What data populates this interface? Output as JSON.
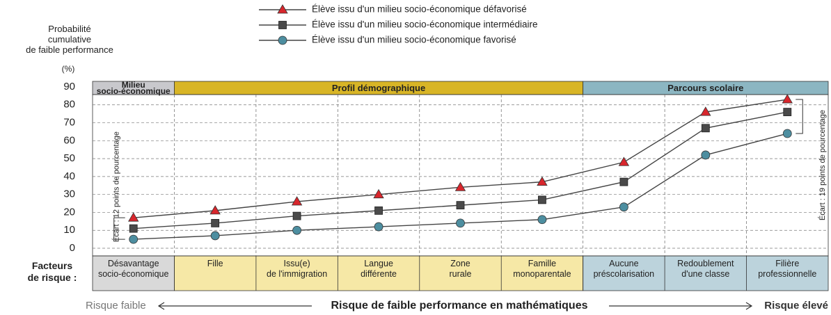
{
  "chart_data": {
    "type": "line",
    "y_label": "Probabilité\ncumulative\nde faible performance",
    "y_unit": "(%)",
    "row_label": "Facteurs\nde risque :",
    "categories": [
      "Désavantage\nsocio-économique",
      "Fille",
      "Issu(e)\nde l'immigration",
      "Langue\ndifférente",
      "Zone\nrurale",
      "Famille\nmonoparentale",
      "Aucune\npréscolarisation",
      "Redoublement\nd'une classe",
      "Filière\nprofessionnelle"
    ],
    "groups": [
      {
        "label": "Milieu\nsocio-économique",
        "color": "#d9d9d9",
        "header_color": "#c8c8cc"
      },
      {
        "label": "Profil démographique",
        "color": "#f6e8a6",
        "header_color": "#d8b526"
      },
      {
        "label": "Parcours scolaire",
        "color": "#bcd3dc",
        "header_color": "#8cb6c2"
      }
    ],
    "series": [
      {
        "name": "Élève issu d'un milieu socio-économique défavorisé",
        "color": "#d8262c",
        "marker": "triangle",
        "values": [
          17,
          21,
          26,
          30,
          34,
          37,
          48,
          76,
          83
        ]
      },
      {
        "name": "Élève issu d'un milieu socio-économique intermédiaire",
        "color": "#4a4a4a",
        "marker": "square",
        "values": [
          11,
          14,
          18,
          21,
          24,
          27,
          37,
          67,
          76
        ]
      },
      {
        "name": "Élève issu d'un milieu socio-économique favorisé",
        "color": "#4d8ea0",
        "marker": "circle",
        "values": [
          5,
          7,
          10,
          12,
          14,
          16,
          23,
          52,
          64
        ]
      }
    ],
    "ylim": [
      0,
      90
    ],
    "yticks": [
      0,
      10,
      20,
      30,
      40,
      50,
      60,
      70,
      80,
      90
    ],
    "grid": true,
    "annotations": [
      "Écart : 12 points de pourcentage",
      "Écart : 19 points de pourcentage"
    ],
    "footer": {
      "left": "Risque faible",
      "center": "Risque de faible performance en mathématiques",
      "right": "Risque élevé"
    }
  }
}
